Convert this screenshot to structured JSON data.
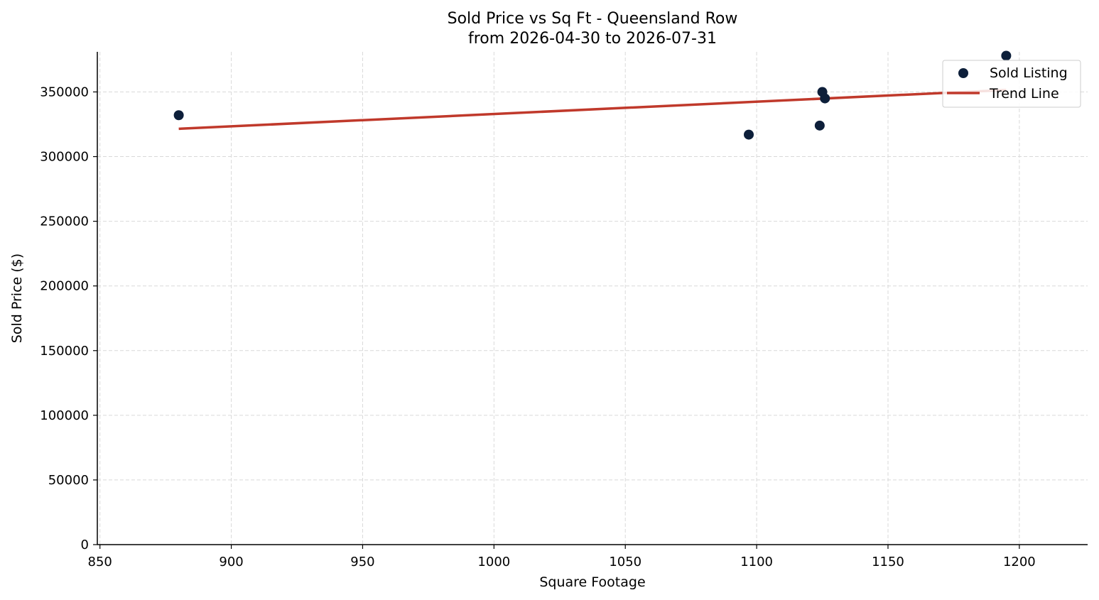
{
  "chart_data": {
    "type": "scatter",
    "title": "Sold Price vs Sq Ft - Queensland Row",
    "subtitle": "from 2026-04-30 to 2026-07-31",
    "xlabel": "Square Footage",
    "ylabel": "Sold Price ($)",
    "xlim": [
      849,
      1226
    ],
    "ylim": [
      0,
      381000
    ],
    "x_ticks": [
      850,
      900,
      950,
      1000,
      1050,
      1100,
      1150,
      1200
    ],
    "y_ticks": [
      0,
      50000,
      100000,
      150000,
      200000,
      250000,
      300000,
      350000
    ],
    "grid": true,
    "legend_position": "top-right",
    "series": [
      {
        "name": "Sold Listing",
        "kind": "points",
        "color": "#0d1f3a",
        "points": [
          {
            "x": 880,
            "y": 332000
          },
          {
            "x": 1097,
            "y": 317000
          },
          {
            "x": 1124,
            "y": 324000
          },
          {
            "x": 1125,
            "y": 350000
          },
          {
            "x": 1126,
            "y": 345000
          },
          {
            "x": 1195,
            "y": 378000
          }
        ]
      },
      {
        "name": "Trend Line",
        "kind": "line",
        "color": "#c0392b",
        "points": [
          {
            "x": 880,
            "y": 321500
          },
          {
            "x": 1195,
            "y": 351500
          }
        ]
      }
    ]
  }
}
